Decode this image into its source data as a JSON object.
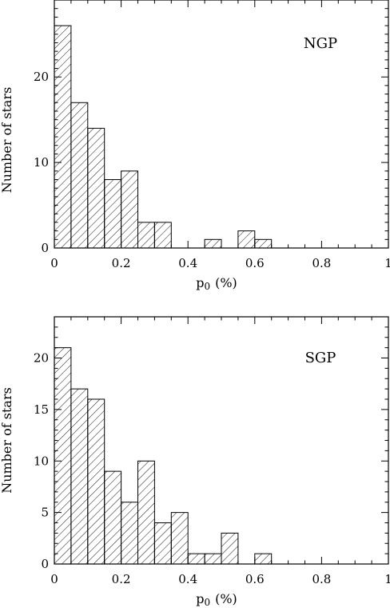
{
  "chart_data": [
    {
      "type": "bar",
      "label": "NGP",
      "xlabel": "p0 (%)",
      "ylabel": "Number of stars",
      "xlim": [
        0,
        1
      ],
      "ylim": [
        0,
        29
      ],
      "xticks": [
        0,
        0.2,
        0.4,
        0.6,
        0.8,
        1
      ],
      "xtick_labels": [
        "0",
        "0.2",
        "0.4",
        "0.6",
        "0.8",
        "1"
      ],
      "yticks": [
        0,
        10,
        20
      ],
      "ytick_labels": [
        "0",
        "10",
        "20"
      ],
      "bin_width": 0.05,
      "bins": [
        {
          "x0": 0.0,
          "count": 26
        },
        {
          "x0": 0.05,
          "count": 17
        },
        {
          "x0": 0.1,
          "count": 14
        },
        {
          "x0": 0.15,
          "count": 8
        },
        {
          "x0": 0.2,
          "count": 9
        },
        {
          "x0": 0.25,
          "count": 3
        },
        {
          "x0": 0.3,
          "count": 3
        },
        {
          "x0": 0.35,
          "count": 0
        },
        {
          "x0": 0.4,
          "count": 0
        },
        {
          "x0": 0.45,
          "count": 1
        },
        {
          "x0": 0.5,
          "count": 0
        },
        {
          "x0": 0.55,
          "count": 2
        },
        {
          "x0": 0.6,
          "count": 1
        }
      ]
    },
    {
      "type": "bar",
      "label": "SGP",
      "xlabel": "p0 (%)",
      "ylabel": "Number of stars",
      "xlim": [
        0,
        1
      ],
      "ylim": [
        0,
        24
      ],
      "xticks": [
        0,
        0.2,
        0.4,
        0.6,
        0.8,
        1
      ],
      "xtick_labels": [
        "0",
        "0.2",
        "0.4",
        "0.6",
        "0.8",
        "1"
      ],
      "yticks": [
        0,
        5,
        10,
        15,
        20
      ],
      "ytick_labels": [
        "0",
        "5",
        "10",
        "15",
        "20"
      ],
      "bin_width": 0.05,
      "bins": [
        {
          "x0": 0.0,
          "count": 21
        },
        {
          "x0": 0.05,
          "count": 17
        },
        {
          "x0": 0.1,
          "count": 16
        },
        {
          "x0": 0.15,
          "count": 9
        },
        {
          "x0": 0.2,
          "count": 6
        },
        {
          "x0": 0.25,
          "count": 10
        },
        {
          "x0": 0.3,
          "count": 4
        },
        {
          "x0": 0.35,
          "count": 5
        },
        {
          "x0": 0.4,
          "count": 1
        },
        {
          "x0": 0.45,
          "count": 1
        },
        {
          "x0": 0.5,
          "count": 3
        },
        {
          "x0": 0.55,
          "count": 0
        },
        {
          "x0": 0.6,
          "count": 1
        }
      ]
    }
  ],
  "axis_text": {
    "p_symbol": "p",
    "p_subscript": "0",
    "unit": "(%)",
    "ylabel": "Number of stars"
  },
  "colors": {
    "ink": "#000000",
    "background": "#ffffff"
  }
}
